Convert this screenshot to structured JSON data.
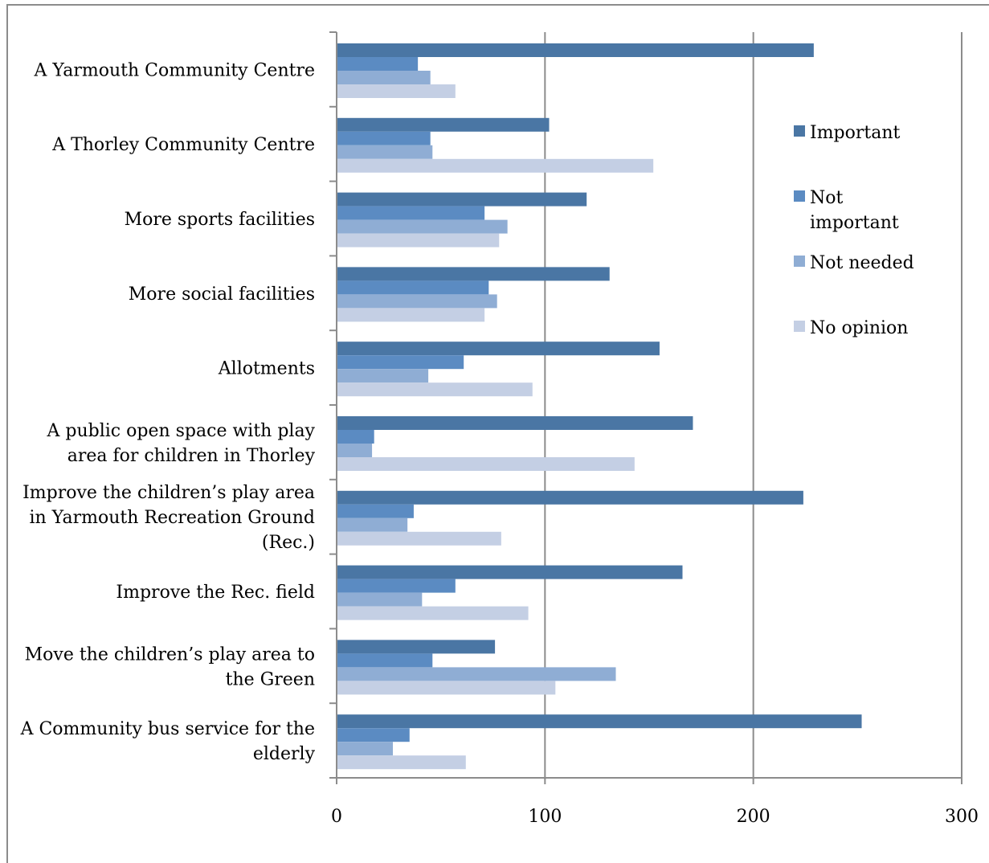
{
  "chart_data": {
    "type": "bar",
    "orientation": "horizontal",
    "title": "",
    "xlabel": "",
    "ylabel": "",
    "xlim": [
      0,
      300
    ],
    "xticks": [
      "0",
      "100",
      "200",
      "300"
    ],
    "grid": true,
    "legend_position": "right",
    "categories": [
      [
        "A Yarmouth Community Centre"
      ],
      [
        "A Thorley Community Centre"
      ],
      [
        "More sports facilities"
      ],
      [
        "More social facilities"
      ],
      [
        "Allotments"
      ],
      [
        "A public open space with play",
        "area for children in Thorley"
      ],
      [
        "Improve the children’s play area",
        "in Yarmouth Recreation Ground",
        "(Rec.)"
      ],
      [
        "Improve the Rec. field"
      ],
      [
        "Move the children’s play area to",
        "the Green"
      ],
      [
        "A Community bus service for the",
        "elderly"
      ]
    ],
    "series": [
      {
        "name": "Important",
        "legend_lines": [
          "Important"
        ],
        "color": "#4a76a4",
        "values": [
          229,
          102,
          120,
          131,
          155,
          171,
          224,
          166,
          76,
          252
        ]
      },
      {
        "name": "Not important",
        "legend_lines": [
          "Not",
          "important"
        ],
        "color": "#5b8bc2",
        "values": [
          39,
          45,
          71,
          73,
          61,
          18,
          37,
          57,
          46,
          35
        ]
      },
      {
        "name": "Not needed",
        "legend_lines": [
          "Not needed"
        ],
        "color": "#8fadd4",
        "values": [
          45,
          46,
          82,
          77,
          44,
          17,
          34,
          41,
          134,
          27
        ]
      },
      {
        "name": "No opinion",
        "legend_lines": [
          "No opinion"
        ],
        "color": "#c4cfe4",
        "values": [
          57,
          152,
          78,
          71,
          94,
          143,
          79,
          92,
          105,
          62
        ]
      }
    ]
  }
}
